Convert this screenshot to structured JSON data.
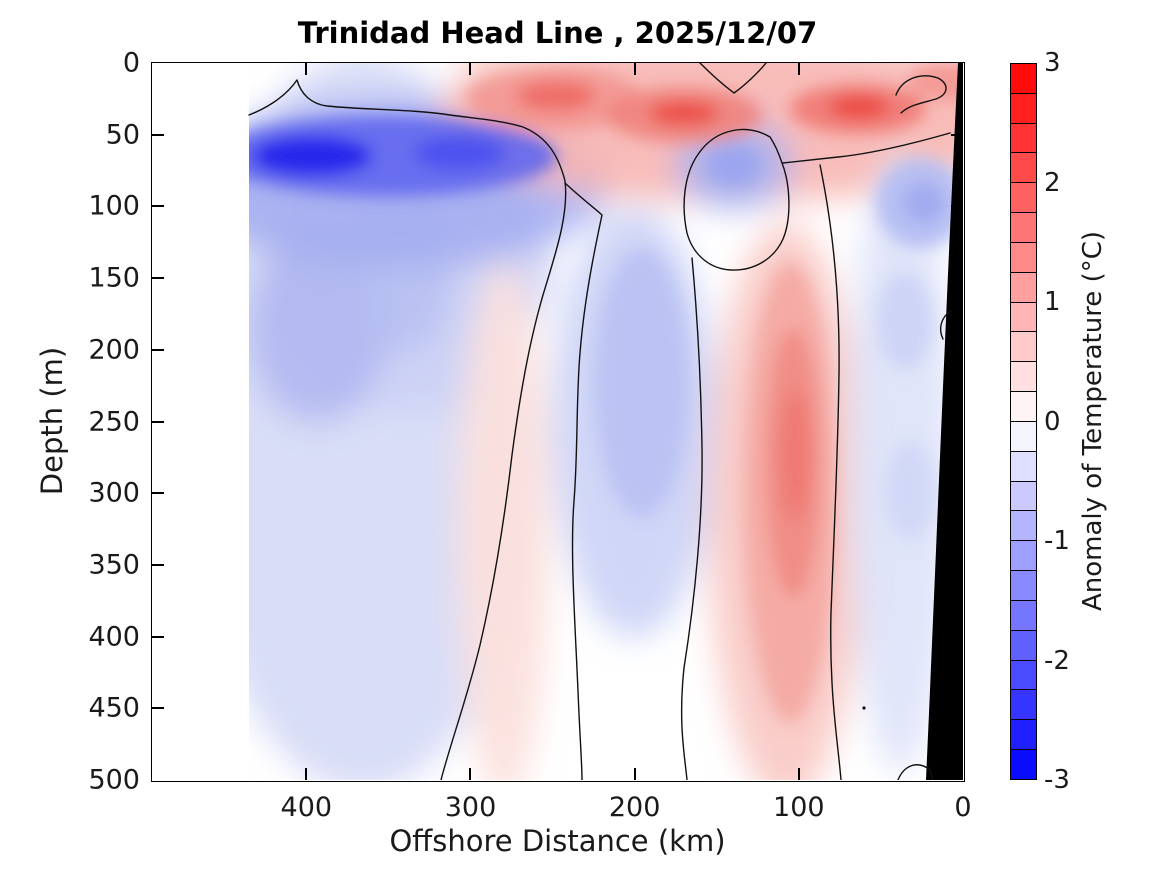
{
  "title": "Trinidad Head Line , 2025/12/07",
  "axes": {
    "x": {
      "label": "Offshore Distance (km)",
      "ticks": [
        400,
        300,
        200,
        100,
        0
      ],
      "range": [
        494,
        0
      ],
      "direction": "reversed"
    },
    "y": {
      "label": "Depth (m)",
      "ticks": [
        0,
        50,
        100,
        150,
        200,
        250,
        300,
        350,
        400,
        450,
        500
      ],
      "range": [
        0,
        500
      ],
      "direction": "downward"
    }
  },
  "colorbar": {
    "label": "Anomaly of Temperature (°C)",
    "min": -3,
    "max": 3,
    "step": 0.25,
    "ticks": [
      3,
      2,
      1,
      0,
      -1,
      -2,
      -3
    ],
    "negative_color": "#0000ff",
    "zero_color": "#ffffff",
    "positive_color": "#ff0000"
  },
  "chart_data": {
    "type": "filled_contour",
    "title": "Trinidad Head Line , 2025/12/07",
    "xlabel": "Offshore Distance (km)",
    "ylabel": "Depth (m)",
    "zlabel": "Anomaly of Temperature (°C)",
    "xlim": [
      494,
      0
    ],
    "ylim": [
      0,
      500
    ],
    "zlim": [
      -3,
      3
    ],
    "contour_interval": 0.25,
    "zero_contour_lines": true,
    "land_mask": "black seafloor/coast wedge near 0-25 km offshore, widening with depth",
    "data_extent_km": [
      435,
      0
    ],
    "grid_x_km": [
      430,
      400,
      350,
      300,
      280,
      250,
      200,
      170,
      140,
      110,
      60,
      25,
      5
    ],
    "grid_depth_m": [
      0,
      25,
      50,
      100,
      150,
      200,
      250,
      300,
      350,
      400,
      450,
      500
    ],
    "anomaly_degC": [
      [
        0,
        -0.5,
        -2.0,
        -1.0,
        -0.75,
        -0.75,
        -0.75,
        -0.5,
        -0.5,
        -0.5,
        -0.25,
        -0.25
      ],
      [
        -0.25,
        -1.0,
        -2.75,
        -1.25,
        -0.75,
        -1.0,
        -0.75,
        -0.75,
        -0.5,
        -0.5,
        -0.25,
        -0.25
      ],
      [
        -0.25,
        -0.75,
        -2.0,
        -1.0,
        -0.75,
        -0.5,
        -0.5,
        -0.5,
        -0.5,
        -0.25,
        -0.25,
        -0.25
      ],
      [
        0,
        -0.25,
        -1.5,
        -0.5,
        -0.25,
        -0.5,
        -0.25,
        -0.25,
        -0.25,
        -0.25,
        -0.25,
        0
      ],
      [
        0.5,
        0.25,
        0,
        0,
        0,
        0.25,
        0.25,
        0.25,
        0.25,
        0.25,
        0.25,
        0.25
      ],
      [
        0.5,
        1.5,
        1.0,
        0.5,
        0.25,
        0,
        0,
        0,
        0,
        0,
        0,
        0
      ],
      [
        -0.1,
        0.5,
        0.5,
        0.25,
        -0.5,
        -0.5,
        -0.75,
        -0.75,
        -0.5,
        -0.25,
        0,
        0
      ],
      [
        0.5,
        1.5,
        2.0,
        0.5,
        0,
        -0.25,
        0,
        0,
        0,
        0,
        0,
        0
      ],
      [
        0.75,
        0.75,
        0.25,
        -0.75,
        -0.25,
        0,
        0.25,
        0.5,
        0.5,
        0.5,
        0.25,
        0.25
      ],
      [
        0.5,
        1.0,
        0.75,
        0.25,
        0.5,
        0.75,
        1.0,
        1.25,
        1.0,
        1.0,
        0.75,
        0.75
      ],
      [
        1.0,
        2.25,
        1.25,
        -0.5,
        -0.25,
        -0.25,
        -0.5,
        -0.25,
        -0.5,
        -0.25,
        -0.25,
        0
      ],
      [
        1.0,
        0.75,
        0.25,
        -0.75,
        -0.5,
        -0.25,
        -0.25,
        -0.25,
        -0.25,
        0,
        0,
        0
      ],
      [
        0.75,
        0.5,
        0,
        null,
        null,
        null,
        null,
        null,
        null,
        null,
        null,
        null
      ]
    ],
    "features": [
      {
        "name": "strong cold subsurface core",
        "value_degC": -2.75,
        "x_km": [
          300,
          435
        ],
        "depth_m": [
          40,
          80
        ]
      },
      {
        "name": "warm surface band",
        "value_degC": 1.0,
        "x_km": [
          0,
          290
        ],
        "depth_m": [
          0,
          100
        ]
      },
      {
        "name": "warm hotspot",
        "value_degC": 1.5,
        "x_km": 250,
        "depth_m": 25
      },
      {
        "name": "warm hotspot",
        "value_degC": 2.0,
        "x_km": 170,
        "depth_m": 40
      },
      {
        "name": "warm hotspot",
        "value_degC": 2.25,
        "x_km": 65,
        "depth_m": 35
      },
      {
        "name": "cool blob under warm band",
        "value_degC": -0.75,
        "x_km": 140,
        "depth_m": 75
      },
      {
        "name": "cool mid-depth column",
        "value_degC": -0.75,
        "x_km": 200,
        "depth_m": [
          130,
          420
        ]
      },
      {
        "name": "warm deep column",
        "value_degC": 1.25,
        "x_km": 110,
        "depth_m": [
          150,
          500
        ]
      },
      {
        "name": "broad cool offshore region",
        "value_degC": -0.5,
        "x_km": [
          290,
          435
        ],
        "depth_m": [
          100,
          500
        ]
      },
      {
        "name": "weak warm column",
        "value_degC": 0.25,
        "x_km": 280,
        "depth_m": [
          150,
          500
        ]
      },
      {
        "name": "weak cool column near coast",
        "value_degC": -0.5,
        "x_km": [
          10,
          70
        ],
        "depth_m": [
          60,
          500
        ]
      }
    ]
  }
}
